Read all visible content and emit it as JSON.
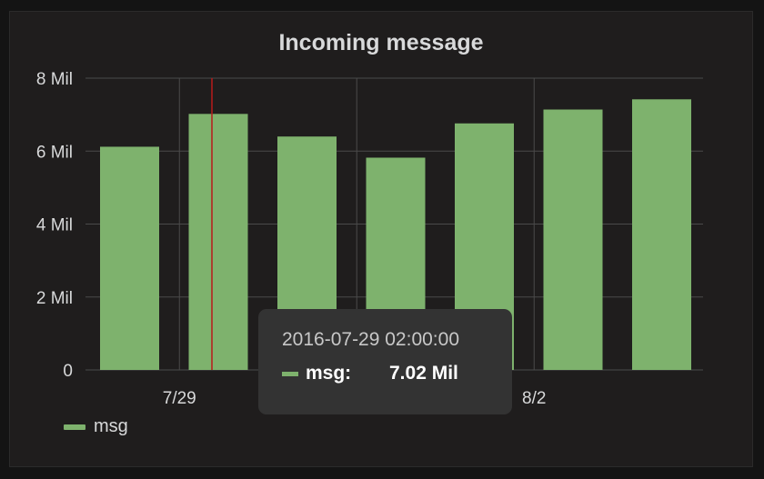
{
  "colors": {
    "series": "#7eb26d",
    "grid": "#4a4a4a",
    "axis_text": "#d8d9da",
    "cursor": "#b91b1b"
  },
  "chart_data": {
    "type": "bar",
    "title": "Incoming message",
    "x": [
      "2016-07-28",
      "2016-07-29",
      "2016-07-30",
      "2016-07-31",
      "2016-08-01",
      "2016-08-02",
      "2016-08-03"
    ],
    "series": [
      {
        "name": "msg",
        "values": [
          6.12,
          7.02,
          6.4,
          5.82,
          6.76,
          7.14,
          7.42
        ]
      }
    ],
    "y_tick_labels": [
      "0",
      "2 Mil",
      "4 Mil",
      "6 Mil",
      "8 Mil"
    ],
    "y_ticks": [
      0,
      2,
      4,
      6,
      8
    ],
    "ylim": [
      0,
      8
    ],
    "x_tick_labels": [
      {
        "label": "7/29",
        "x": "2016-07-29"
      },
      {
        "label": "8/2",
        "x": "2016-08-02"
      }
    ],
    "x_gridlines": [
      "2016-07-29",
      "2016-07-31",
      "2016-08-02"
    ],
    "grid": true,
    "legend_position": "bottom-left",
    "cursor_at": "2016-07-29"
  },
  "tooltip": {
    "time": "2016-07-29 02:00:00",
    "series": "msg:",
    "value": "7.02 Mil"
  }
}
